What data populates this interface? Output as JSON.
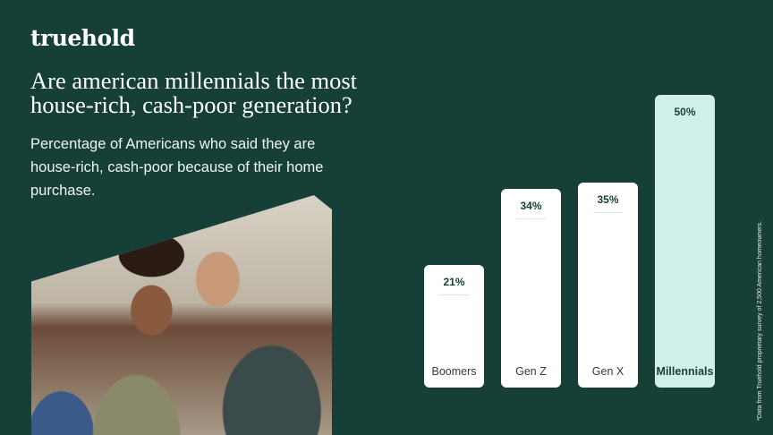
{
  "brand": {
    "logo": "truehold"
  },
  "header": {
    "title": "Are american millennials the most house-rich, cash-poor generation?",
    "subtitle": "Percentage of Americans who said they are house-rich, cash-poor because of their home purchase."
  },
  "footnote": "*Data from Truehold proprietary survey of 2,500 American homeowners.",
  "colors": {
    "background": "#163f37",
    "bar": "#ffffff",
    "highlight_bar": "#cff0e8"
  },
  "chart_data": {
    "type": "bar",
    "categories": [
      "Boomers",
      "Gen Z",
      "Gen X",
      "Millennials"
    ],
    "values": [
      21,
      34,
      35,
      50
    ],
    "value_labels": [
      "21%",
      "34%",
      "35%",
      "50%"
    ],
    "highlight": "Millennials",
    "ylim": [
      0,
      50
    ],
    "grid": false
  }
}
